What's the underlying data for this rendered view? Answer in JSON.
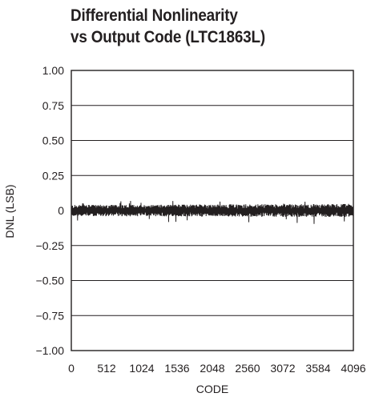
{
  "chart_data": {
    "type": "line",
    "title_lines": [
      "Differential Nonlinearity",
      "vs Output Code (LTC1863L)"
    ],
    "xlabel": "CODE",
    "ylabel": "DNL (LSB)",
    "xlim": [
      0,
      4096
    ],
    "ylim": [
      -1.0,
      1.0
    ],
    "x_ticks": [
      0,
      512,
      1024,
      1536,
      2048,
      2560,
      3072,
      3584,
      4096
    ],
    "x_tick_labels": [
      "0",
      "512",
      "1024",
      "1536",
      "2048",
      "2560",
      "3072",
      "3584",
      "4096"
    ],
    "y_ticks": [
      1.0,
      0.75,
      0.5,
      0.25,
      0,
      -0.25,
      -0.5,
      -0.75,
      -1.0
    ],
    "y_tick_labels": [
      "1.00",
      "0.75",
      "0.50",
      "0.25",
      "0",
      "−0.25",
      "−0.50",
      "−0.75",
      "−1.00"
    ],
    "grid": "horizontal",
    "series": [
      {
        "style": "dense noise band",
        "color": "#231f20",
        "typical_range": [
          -0.04,
          0.04
        ],
        "max_positive": 0.07,
        "max_negative": -0.1
      }
    ]
  }
}
